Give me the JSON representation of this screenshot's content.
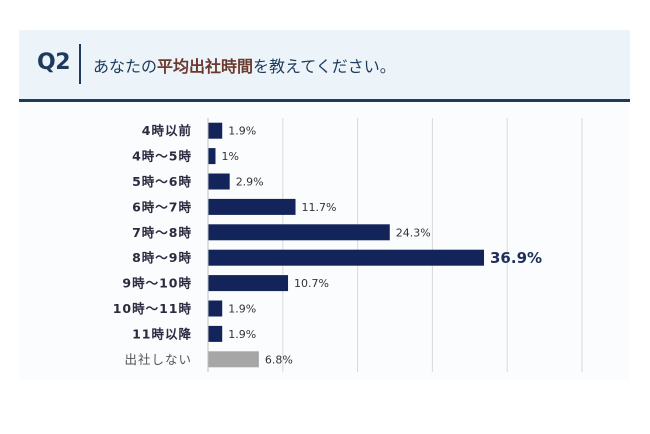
{
  "header": {
    "question_id": "Q2",
    "question_pre": "あなたの",
    "question_highlight": "平均出社時間",
    "question_post": "を教えてください。"
  },
  "colors": {
    "bar": "#13245a",
    "bar_muted": "#a6a6a6",
    "header_bg": "#edf4f9",
    "header_accent": "#1e3b5c"
  },
  "chart_data": {
    "type": "bar",
    "orientation": "horizontal",
    "categories": [
      "4時以前",
      "4時～5時",
      "5時～6時",
      "6時～7時",
      "7時～8時",
      "8時～9時",
      "9時～10時",
      "10時～11時",
      "11時以降",
      "出社しない"
    ],
    "values": [
      1.9,
      1,
      2.9,
      11.7,
      24.3,
      36.9,
      10.7,
      1.9,
      1.9,
      6.8
    ],
    "value_labels": [
      "1.9%",
      "1%",
      "2.9%",
      "11.7%",
      "24.3%",
      "36.9%",
      "10.7%",
      "1.9%",
      "1.9%",
      "6.8%"
    ],
    "highlight_index": 5,
    "muted_index": 9,
    "xlim": [
      0,
      50
    ],
    "grid": true
  }
}
